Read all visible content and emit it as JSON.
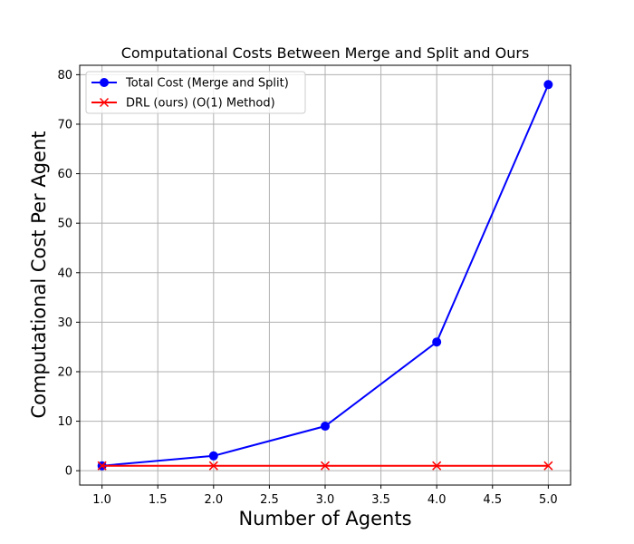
{
  "chart_data": {
    "type": "line",
    "title": "Computational Costs Between Merge and Split and Ours",
    "xlabel": "Number of Agents",
    "ylabel": "Computational Cost Per Agent",
    "xlim": [
      0.8,
      5.2
    ],
    "ylim": [
      -2.9,
      81.9
    ],
    "xticks": [
      1.0,
      1.5,
      2.0,
      2.5,
      3.0,
      3.5,
      4.0,
      4.5,
      5.0
    ],
    "xtick_labels": [
      "1.0",
      "1.5",
      "2.0",
      "2.5",
      "3.0",
      "3.5",
      "4.0",
      "4.5",
      "5.0"
    ],
    "yticks": [
      0,
      10,
      20,
      30,
      40,
      50,
      60,
      70,
      80
    ],
    "ytick_labels": [
      "0",
      "10",
      "20",
      "30",
      "40",
      "50",
      "60",
      "70",
      "80"
    ],
    "grid": true,
    "legend_position": "top-left",
    "series": [
      {
        "name": "Total Cost (Merge and Split)",
        "color": "#0000ff",
        "marker": "circle",
        "x": [
          1,
          2,
          3,
          4,
          5
        ],
        "y": [
          1,
          3,
          9,
          26,
          78
        ]
      },
      {
        "name": "DRL (ours) (O(1) Method)",
        "color": "#ff0000",
        "marker": "x",
        "x": [
          1,
          2,
          3,
          4,
          5
        ],
        "y": [
          1,
          1,
          1,
          1,
          1
        ]
      }
    ]
  }
}
